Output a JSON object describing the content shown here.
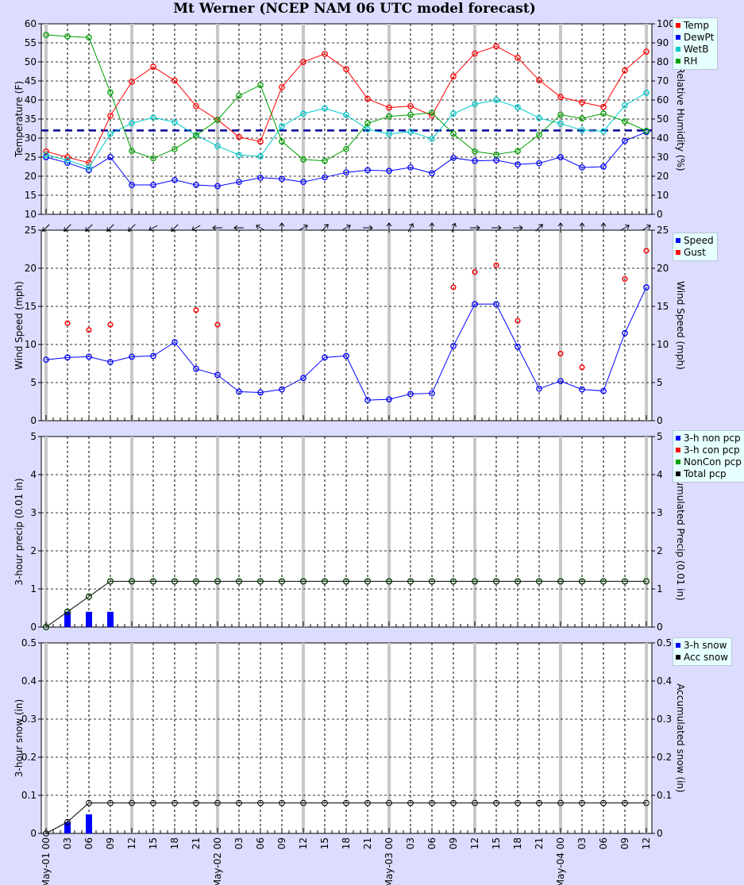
{
  "chart_data": [
    {
      "type": "line",
      "title": "Mt Werner (NCEP NAM 06 UTC model forecast)",
      "ylabel": "Temperature (F)",
      "y2label": "Relative Humidity (%)",
      "ylim": [
        10,
        60
      ],
      "y2lim": [
        0,
        100
      ],
      "y_ticks": [
        "10",
        "15",
        "20",
        "25",
        "30",
        "35",
        "40",
        "45",
        "50",
        "55",
        "60"
      ],
      "y2_ticks": [
        "0",
        "10",
        "20",
        "30",
        "40",
        "50",
        "60",
        "70",
        "80",
        "90",
        "100"
      ],
      "reference_line": {
        "y": 32,
        "color": "#000099"
      },
      "series": [
        {
          "name": "Temp",
          "color": "#ff0000",
          "axis": "left",
          "values": [
            26.5,
            25,
            23.5,
            35.9,
            44.8,
            48.7,
            45.1,
            38.4,
            34.8,
            30.3,
            29.1,
            43.4,
            50,
            52.1,
            48.1,
            40.3,
            38,
            38.4,
            35.9,
            46.2,
            52.2,
            54.1,
            51.1,
            45.2,
            40.8,
            39.4,
            38.2,
            47.8,
            52.7
          ]
        },
        {
          "name": "DewPt",
          "color": "#0000ff",
          "axis": "left",
          "values": [
            25,
            23.5,
            21.6,
            25,
            17.7,
            17.7,
            19,
            17.7,
            17.4,
            18.5,
            19.6,
            19.3,
            18.5,
            19.7,
            21,
            21.6,
            21.4,
            22.3,
            20.8,
            24.8,
            24,
            24.2,
            23.1,
            23.4,
            25,
            22.3,
            22.5,
            29.3,
            31.6
          ]
        },
        {
          "name": "WetB",
          "color": "#00c8c8",
          "axis": "left",
          "values": [
            25.6,
            24.2,
            22.3,
            31.1,
            33.9,
            35.4,
            34.2,
            30.8,
            27.9,
            25.6,
            25.2,
            33.1,
            36.4,
            37.8,
            36.1,
            32.3,
            31.1,
            31.7,
            29.8,
            36.4,
            38.9,
            40,
            38.1,
            35.3,
            33.8,
            32.1,
            31.8,
            38.6,
            41.9
          ]
        },
        {
          "name": "RH",
          "color": "#00a000",
          "axis": "right",
          "values": [
            94.2,
            93.4,
            92.8,
            64,
            33.3,
            29.4,
            34.3,
            41.5,
            49.5,
            62.3,
            67.8,
            38.2,
            28.8,
            28,
            34.3,
            47.8,
            51.4,
            52.2,
            53.4,
            42.3,
            33,
            31.4,
            33.2,
            41.8,
            52.3,
            50.3,
            52.9,
            48.8,
            43.8
          ]
        }
      ]
    },
    {
      "type": "line",
      "ylabel": "Wind Speed (mph)",
      "y2label": "Wind Speed (mph)",
      "ylim": [
        0,
        25
      ],
      "y_ticks": [
        "0",
        "5",
        "10",
        "15",
        "20",
        "25"
      ],
      "series": [
        {
          "name": "Speed",
          "color": "#0000ff",
          "values": [
            8,
            8.3,
            8.4,
            7.7,
            8.4,
            8.5,
            10.3,
            6.8,
            6,
            3.8,
            3.7,
            4.1,
            5.6,
            8.3,
            8.5,
            2.7,
            2.8,
            3.5,
            3.6,
            9.8,
            15.3,
            15.3,
            9.7,
            4.2,
            5.2,
            4.1,
            3.9,
            11.5,
            17.5
          ]
        },
        {
          "name": "Gust",
          "color": "#ff0000",
          "markers_only": true,
          "values": [
            null,
            12.8,
            11.9,
            12.6,
            null,
            null,
            null,
            14.5,
            12.6,
            null,
            null,
            null,
            null,
            null,
            null,
            null,
            null,
            null,
            null,
            17.5,
            19.5,
            20.4,
            13.1,
            null,
            8.8,
            7,
            null,
            18.6,
            22.3
          ]
        }
      ],
      "wind_direction_deg": [
        45,
        45,
        45,
        45,
        45,
        60,
        45,
        60,
        90,
        90,
        120,
        180,
        240,
        225,
        240,
        270,
        180,
        210,
        180,
        200,
        270,
        270,
        270,
        225,
        180,
        180,
        180,
        240,
        240
      ]
    },
    {
      "type": "bar",
      "ylabel": "3-hour precip (0.01 in)",
      "y2label": "Accumulated Precip (0.01 in)",
      "ylim": [
        0,
        5
      ],
      "y_ticks": [
        "0",
        "1",
        "2",
        "3",
        "4",
        "5"
      ],
      "series": [
        {
          "name": "3-h non pcp",
          "color": "#0000ff",
          "values": [
            0,
            0.4,
            0.4,
            0.4,
            0,
            0,
            0,
            0,
            0,
            0,
            0,
            0,
            0,
            0,
            0,
            0,
            0,
            0,
            0,
            0,
            0,
            0,
            0,
            0,
            0,
            0,
            0,
            0,
            0
          ]
        },
        {
          "name": "3-h con pcp",
          "color": "#ff0000",
          "values": [
            0,
            0,
            0,
            0,
            0,
            0,
            0,
            0,
            0,
            0,
            0,
            0,
            0,
            0,
            0,
            0,
            0,
            0,
            0,
            0,
            0,
            0,
            0,
            0,
            0,
            0,
            0,
            0,
            0
          ]
        },
        {
          "name": "NonCon pcp",
          "color": "#00a000",
          "values": [
            0,
            0.4,
            0.8,
            1.2,
            1.2,
            1.2,
            1.2,
            1.2,
            1.2,
            1.2,
            1.2,
            1.2,
            1.2,
            1.2,
            1.2,
            1.2,
            1.2,
            1.2,
            1.2,
            1.2,
            1.2,
            1.2,
            1.2,
            1.2,
            1.2,
            1.2,
            1.2,
            1.2,
            1.2
          ]
        },
        {
          "name": "Total pcp",
          "color": "#000000",
          "values": [
            0,
            0.4,
            0.8,
            1.2,
            1.2,
            1.2,
            1.2,
            1.2,
            1.2,
            1.2,
            1.2,
            1.2,
            1.2,
            1.2,
            1.2,
            1.2,
            1.2,
            1.2,
            1.2,
            1.2,
            1.2,
            1.2,
            1.2,
            1.2,
            1.2,
            1.2,
            1.2,
            1.2,
            1.2
          ]
        }
      ]
    },
    {
      "type": "bar",
      "ylabel": "3-hour snow (in)",
      "y2label": "Accumulated snow (in)",
      "ylim": [
        0,
        0.5
      ],
      "y_ticks": [
        "0",
        "0.1",
        "0.2",
        "0.3",
        "0.4",
        "0.5"
      ],
      "series": [
        {
          "name": "3-h snow",
          "color": "#0000ff",
          "values": [
            0,
            0.03,
            0.05,
            0,
            0,
            0,
            0,
            0,
            0,
            0,
            0,
            0,
            0,
            0,
            0,
            0,
            0,
            0,
            0,
            0,
            0,
            0,
            0,
            0,
            0,
            0,
            0,
            0,
            0
          ]
        },
        {
          "name": "Acc snow",
          "color": "#000000",
          "values": [
            0,
            0.03,
            0.08,
            0.08,
            0.08,
            0.08,
            0.08,
            0.08,
            0.08,
            0.08,
            0.08,
            0.08,
            0.08,
            0.08,
            0.08,
            0.08,
            0.08,
            0.08,
            0.08,
            0.08,
            0.08,
            0.08,
            0.08,
            0.08,
            0.08,
            0.08,
            0.08,
            0.08,
            0.08
          ]
        }
      ]
    }
  ],
  "x_labels": [
    "May-01 00",
    "03",
    "06",
    "09",
    "12",
    "15",
    "18",
    "21",
    "May-02 00",
    "03",
    "06",
    "09",
    "12",
    "15",
    "18",
    "21",
    "May-03 00",
    "03",
    "06",
    "09",
    "12",
    "15",
    "18",
    "21",
    "May-04 00",
    "03",
    "06",
    "09",
    "12"
  ]
}
